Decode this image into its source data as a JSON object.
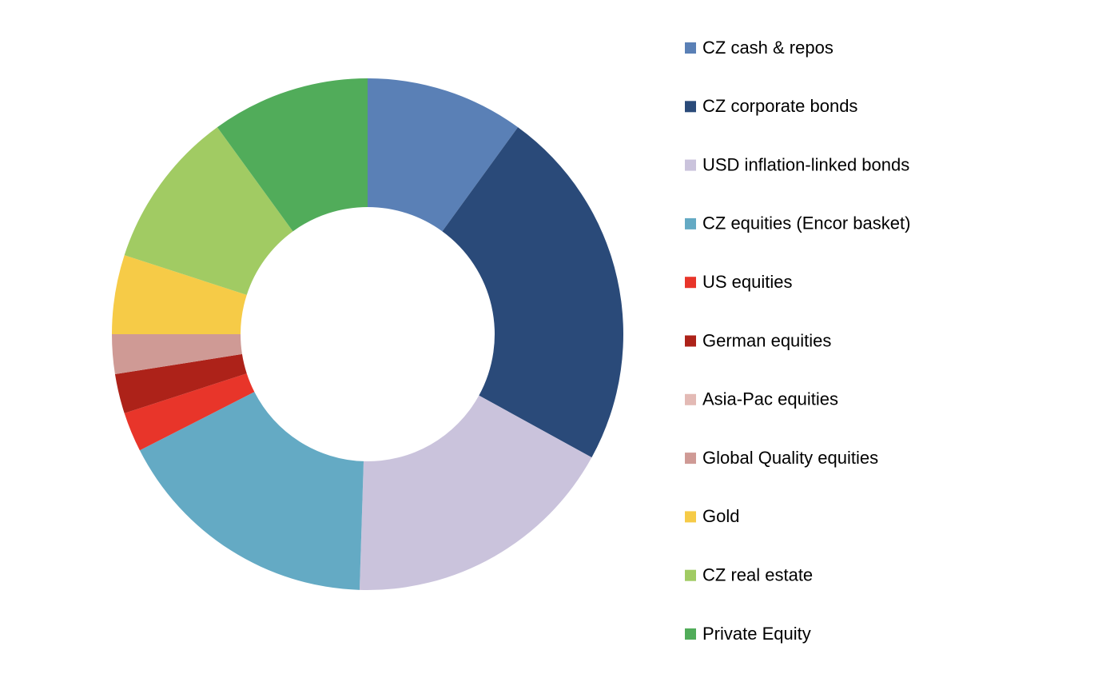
{
  "chart_data": {
    "type": "donut",
    "categories": [
      "CZ cash & repos",
      "CZ corporate bonds",
      "USD inflation-linked bonds",
      "CZ equities (Encor basket)",
      "US equities",
      "German equities",
      "Asia-Pac equities",
      "Global Quality equities",
      "Gold",
      "CZ real estate",
      "Private Equity"
    ],
    "values": [
      10,
      23,
      17.5,
      17,
      2.5,
      2.5,
      0,
      2.5,
      5,
      10,
      10
    ],
    "colors": [
      "#5a80b6",
      "#2a4a79",
      "#cac3dc",
      "#64aac4",
      "#e8352a",
      "#ad2219",
      "#e3bab5",
      "#cf9a95",
      "#f6cb47",
      "#a1cb63",
      "#51ac5a"
    ],
    "legend": "right"
  }
}
